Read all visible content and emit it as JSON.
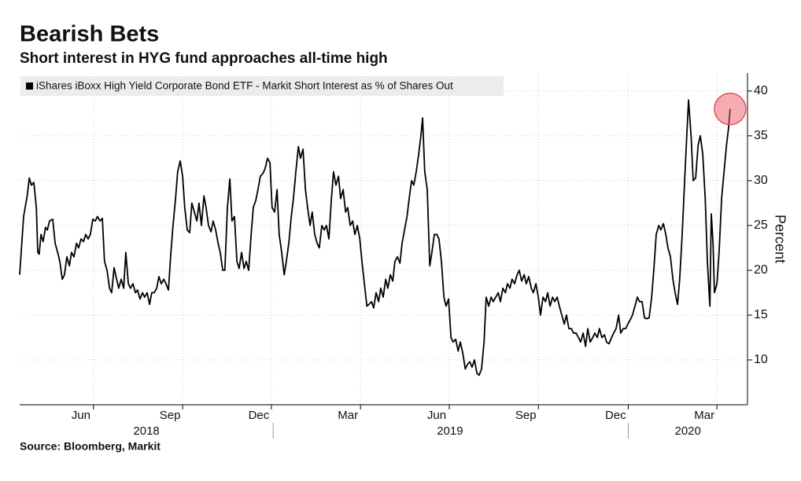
{
  "chart_data": {
    "type": "line",
    "title": "Bearish Bets",
    "subtitle": "Short interest in HYG fund approaches all-time high",
    "source": "Source: Bloomberg, Markit",
    "y_label": "Percent",
    "grid": true,
    "legend": "top-left",
    "ylim": [
      5,
      42
    ],
    "yticks": [
      10,
      15,
      20,
      25,
      30,
      35,
      40
    ],
    "xlim": [
      2018.286,
      2020.336
    ],
    "xticks": [
      {
        "value": 2018.494,
        "label": "Jun"
      },
      {
        "value": 2018.745,
        "label": "Sep"
      },
      {
        "value": 2018.995,
        "label": "Dec"
      },
      {
        "value": 2019.246,
        "label": "Mar"
      },
      {
        "value": 2019.496,
        "label": "Jun"
      },
      {
        "value": 2019.747,
        "label": "Sep"
      },
      {
        "value": 2020.0,
        "label": "Dec"
      },
      {
        "value": 2020.25,
        "label": "Mar"
      }
    ],
    "xgroups": [
      {
        "value": 2018.643,
        "label": "2018"
      },
      {
        "value": 2019.498,
        "label": "2019"
      },
      {
        "value": 2020.168,
        "label": "2020"
      }
    ],
    "x": [
      2018.286,
      2018.297,
      2018.308,
      2018.313,
      2018.319,
      2018.326,
      2018.333,
      2018.337,
      2018.341,
      2018.346,
      2018.352,
      2018.359,
      2018.364,
      2018.37,
      2018.379,
      2018.386,
      2018.393,
      2018.399,
      2018.406,
      2018.412,
      2018.419,
      2018.426,
      2018.432,
      2018.439,
      2018.446,
      2018.452,
      2018.459,
      2018.466,
      2018.472,
      2018.479,
      2018.485,
      2018.492,
      2018.499,
      2018.505,
      2018.512,
      2018.519,
      2018.525,
      2018.532,
      2018.539,
      2018.545,
      2018.552,
      2018.559,
      2018.565,
      2018.572,
      2018.579,
      2018.585,
      2018.592,
      2018.598,
      2018.605,
      2018.612,
      2018.618,
      2018.625,
      2018.632,
      2018.638,
      2018.645,
      2018.652,
      2018.658,
      2018.665,
      2018.672,
      2018.678,
      2018.685,
      2018.692,
      2018.698,
      2018.705,
      2018.712,
      2018.718,
      2018.725,
      2018.731,
      2018.738,
      2018.745,
      2018.751,
      2018.758,
      2018.765,
      2018.771,
      2018.778,
      2018.785,
      2018.791,
      2018.798,
      2018.805,
      2018.811,
      2018.818,
      2018.825,
      2018.831,
      2018.838,
      2018.845,
      2018.851,
      2018.858,
      2018.864,
      2018.871,
      2018.878,
      2018.884,
      2018.891,
      2018.898,
      2018.904,
      2018.911,
      2018.918,
      2018.924,
      2018.931,
      2018.938,
      2018.944,
      2018.951,
      2018.957,
      2018.964,
      2018.971,
      2018.977,
      2018.984,
      2018.991,
      2018.997,
      2019.004,
      2019.011,
      2019.017,
      2019.024,
      2019.031,
      2019.037,
      2019.044,
      2019.051,
      2019.057,
      2019.064,
      2019.071,
      2019.077,
      2019.084,
      2019.091,
      2019.097,
      2019.104,
      2019.11,
      2019.117,
      2019.124,
      2019.13,
      2019.137,
      2019.144,
      2019.15,
      2019.157,
      2019.164,
      2019.17,
      2019.177,
      2019.184,
      2019.19,
      2019.197,
      2019.204,
      2019.21,
      2019.217,
      2019.224,
      2019.23,
      2019.237,
      2019.244,
      2019.25,
      2019.257,
      2019.264,
      2019.27,
      2019.277,
      2019.283,
      2019.29,
      2019.297,
      2019.303,
      2019.31,
      2019.317,
      2019.323,
      2019.33,
      2019.337,
      2019.343,
      2019.35,
      2019.357,
      2019.363,
      2019.37,
      2019.377,
      2019.383,
      2019.39,
      2019.396,
      2019.403,
      2019.41,
      2019.416,
      2019.421,
      2019.427,
      2019.434,
      2019.441,
      2019.447,
      2019.454,
      2019.461,
      2019.467,
      2019.474,
      2019.481,
      2019.487,
      2019.494,
      2019.501,
      2019.507,
      2019.514,
      2019.521,
      2019.527,
      2019.534,
      2019.541,
      2019.547,
      2019.554,
      2019.56,
      2019.567,
      2019.574,
      2019.58,
      2019.587,
      2019.594,
      2019.6,
      2019.607,
      2019.614,
      2019.62,
      2019.627,
      2019.634,
      2019.64,
      2019.647,
      2019.654,
      2019.66,
      2019.667,
      2019.673,
      2019.68,
      2019.687,
      2019.693,
      2019.7,
      2019.707,
      2019.713,
      2019.72,
      2019.727,
      2019.733,
      2019.74,
      2019.747,
      2019.753,
      2019.76,
      2019.767,
      2019.773,
      2019.78,
      2019.787,
      2019.793,
      2019.8,
      2019.806,
      2019.813,
      2019.82,
      2019.826,
      2019.833,
      2019.84,
      2019.846,
      2019.853,
      2019.86,
      2019.866,
      2019.873,
      2019.88,
      2019.886,
      2019.893,
      2019.9,
      2019.906,
      2019.913,
      2019.919,
      2019.926,
      2019.933,
      2019.939,
      2019.946,
      2019.953,
      2019.959,
      2019.966,
      2019.973,
      2019.979,
      2019.986,
      2019.993,
      2019.999,
      2020.006,
      2020.012,
      2020.019,
      2020.026,
      2020.032,
      2020.039,
      2020.046,
      2020.052,
      2020.059,
      2020.066,
      2020.072,
      2020.079,
      2020.086,
      2020.092,
      2020.099,
      2020.106,
      2020.112,
      2020.119,
      2020.126,
      2020.132,
      2020.139,
      2020.145,
      2020.152,
      2020.159,
      2020.165,
      2020.17,
      2020.177,
      2020.183,
      2020.19,
      2020.197,
      2020.203,
      2020.21,
      2020.217,
      2020.223,
      2020.23,
      2020.234,
      2020.239,
      2020.243,
      2020.25,
      2020.256,
      2020.263,
      2020.27,
      2020.277,
      2020.283,
      2020.287
    ],
    "series": [
      {
        "name": "iShares iBoxx High Yield Corporate Bond ETF - Markit Short Interest as % of Shares Out",
        "color": "#000000",
        "values": [
          19.5,
          26,
          28.5,
          30.3,
          29.5,
          29.8,
          27,
          22,
          21.8,
          24,
          23.2,
          24.8,
          24.5,
          25.5,
          25.7,
          23,
          22,
          21,
          19,
          19.5,
          21.5,
          20.5,
          22,
          21.5,
          23,
          22.5,
          23.5,
          23.2,
          24,
          23.5,
          24,
          25.7,
          25.5,
          26,
          25.5,
          25.8,
          21,
          20,
          18,
          17.5,
          20.3,
          19,
          18,
          19,
          18,
          22,
          18.5,
          18,
          18.5,
          17.5,
          17.8,
          16.8,
          17.5,
          17,
          17.5,
          16.2,
          17.5,
          17.5,
          18,
          19.3,
          18.5,
          19,
          18.5,
          17.8,
          22,
          25,
          28,
          31,
          32.2,
          30.5,
          27,
          24.5,
          24.2,
          27.5,
          26.5,
          25.5,
          27.5,
          25,
          28.3,
          27,
          25,
          24.3,
          25.5,
          24.5,
          23,
          22,
          20,
          20,
          27,
          30.2,
          25.5,
          26,
          21,
          20.2,
          22,
          20.2,
          21,
          20,
          24,
          27,
          27.8,
          29,
          30.5,
          30.8,
          31.3,
          32.5,
          32,
          27,
          26.5,
          29,
          24,
          22,
          19.5,
          21,
          23,
          26,
          28,
          31,
          33.8,
          32.5,
          33.5,
          29,
          27,
          25,
          26.5,
          24,
          23,
          22.5,
          25,
          24.5,
          25,
          23.5,
          28,
          31,
          29.5,
          30.5,
          28,
          29,
          26.5,
          27,
          25,
          25.5,
          24,
          25,
          23.5,
          21,
          18.5,
          16,
          16.2,
          16.5,
          15.8,
          17.5,
          16.5,
          18,
          17,
          19,
          18,
          19.5,
          18.8,
          21,
          21.5,
          20.8,
          23,
          24.5,
          26,
          28,
          30,
          29.5,
          31,
          33,
          35,
          37,
          31,
          29,
          20.5,
          22,
          24,
          24,
          23.5,
          21,
          17,
          16,
          16.8,
          12.5,
          12,
          12.3,
          11,
          12,
          10.8,
          9,
          9.5,
          9.8,
          9.2,
          10,
          8.5,
          8.3,
          9,
          12,
          17,
          16,
          17,
          16.5,
          17,
          17.5,
          16.5,
          18,
          17.5,
          18.5,
          18,
          19,
          18.5,
          19.5,
          20,
          18.8,
          19.5,
          18.5,
          19.3,
          18,
          17.5,
          18.5,
          17,
          15,
          17,
          16.5,
          17.5,
          16,
          17,
          16.5,
          17,
          16,
          15,
          14,
          15,
          13.5,
          13.5,
          13,
          13,
          12.5,
          12,
          13,
          11.5,
          13.5,
          12,
          12.5,
          13,
          12.5,
          13.5,
          12.5,
          12.8,
          12,
          11.8,
          12.5,
          13,
          13.5,
          15,
          13,
          13.5,
          13.5,
          14,
          14.5,
          15,
          16,
          17,
          16.5,
          16.5,
          14.7,
          14.6,
          14.7,
          17,
          20,
          24,
          25,
          24.5,
          25.2,
          24,
          22.5,
          21.5,
          19,
          17.5,
          16.2,
          19,
          24,
          30,
          35,
          39,
          35,
          30,
          30.3,
          34,
          35,
          33,
          28,
          21,
          16,
          26.3,
          23,
          17.5,
          18.5,
          22,
          28,
          31,
          34,
          36,
          38
        ]
      }
    ]
  }
}
